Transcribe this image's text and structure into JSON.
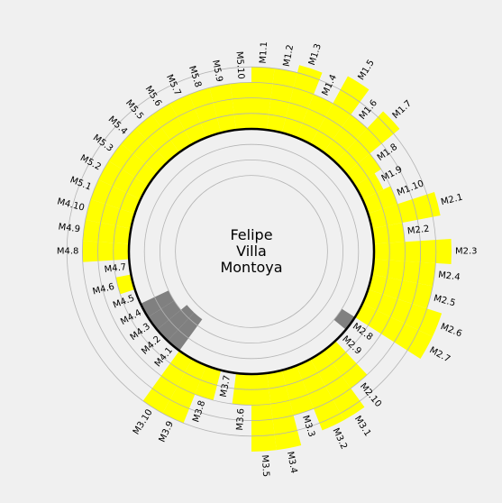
{
  "chart_data": {
    "type": "radial-bar",
    "center_text": [
      "Felipe",
      "Villa",
      "Montoya"
    ],
    "colors": {
      "high": "#ffff00",
      "low": "#808080",
      "background": "#f0f0f0",
      "grid": "#b4b4b4",
      "baseline": "#000000"
    },
    "scale": {
      "baseline": 0,
      "max": 10,
      "inner_limit": -8,
      "grid": [
        -6,
        -4,
        -2,
        2,
        4,
        6,
        8
      ]
    },
    "segments": [
      {
        "label": "M1.1",
        "value": 8
      },
      {
        "label": "M1.2",
        "value": 8
      },
      {
        "label": "M1.3",
        "value": 9
      },
      {
        "label": "M1.4",
        "value": 6
      },
      {
        "label": "M1.5",
        "value": 10
      },
      {
        "label": "M1.6",
        "value": 6
      },
      {
        "label": "M1.7",
        "value": 9
      },
      {
        "label": "M1.8",
        "value": 4
      },
      {
        "label": "M1.9",
        "value": 3
      },
      {
        "label": "M1.10",
        "value": 4
      },
      {
        "label": "M2.1",
        "value": 9
      },
      {
        "label": "M2.2",
        "value": 4
      },
      {
        "label": "M2.3",
        "value": 10
      },
      {
        "label": "M2.4",
        "value": 8
      },
      {
        "label": "M2.5",
        "value": 8
      },
      {
        "label": "M2.6",
        "value": 10
      },
      {
        "label": "M2.7",
        "value": 10
      },
      {
        "label": "M2.8",
        "value": -2
      },
      {
        "label": "M2.9",
        "value": 0
      },
      {
        "label": "M2.10",
        "value": 6
      },
      {
        "label": "M3.1",
        "value": 9
      },
      {
        "label": "M3.2",
        "value": 9
      },
      {
        "label": "M3.3",
        "value": 6
      },
      {
        "label": "M3.4",
        "value": 10
      },
      {
        "label": "M3.5",
        "value": 10
      },
      {
        "label": "M3.6",
        "value": 4
      },
      {
        "label": "M3.7",
        "value": 0
      },
      {
        "label": "M3.8",
        "value": 4
      },
      {
        "label": "M3.9",
        "value": 8
      },
      {
        "label": "M3.10",
        "value": 8
      },
      {
        "label": "M4.1",
        "value": -5
      },
      {
        "label": "M4.2",
        "value": -5
      },
      {
        "label": "M4.3",
        "value": -4
      },
      {
        "label": "M4.4",
        "value": -4
      },
      {
        "label": "M4.5",
        "value": 0
      },
      {
        "label": "M4.6",
        "value": 2
      },
      {
        "label": "M4.7",
        "value": 0
      },
      {
        "label": "M4.8",
        "value": 6
      },
      {
        "label": "M4.9",
        "value": 6
      },
      {
        "label": "M4.10",
        "value": 6
      },
      {
        "label": "M5.1",
        "value": 6
      },
      {
        "label": "M5.2",
        "value": 6
      },
      {
        "label": "M5.3",
        "value": 6
      },
      {
        "label": "M5.4",
        "value": 6
      },
      {
        "label": "M5.5",
        "value": 6
      },
      {
        "label": "M5.6",
        "value": 6
      },
      {
        "label": "M5.7",
        "value": 6
      },
      {
        "label": "M5.8",
        "value": 6
      },
      {
        "label": "M5.9",
        "value": 6
      },
      {
        "label": "M5.10",
        "value": 6
      }
    ]
  }
}
